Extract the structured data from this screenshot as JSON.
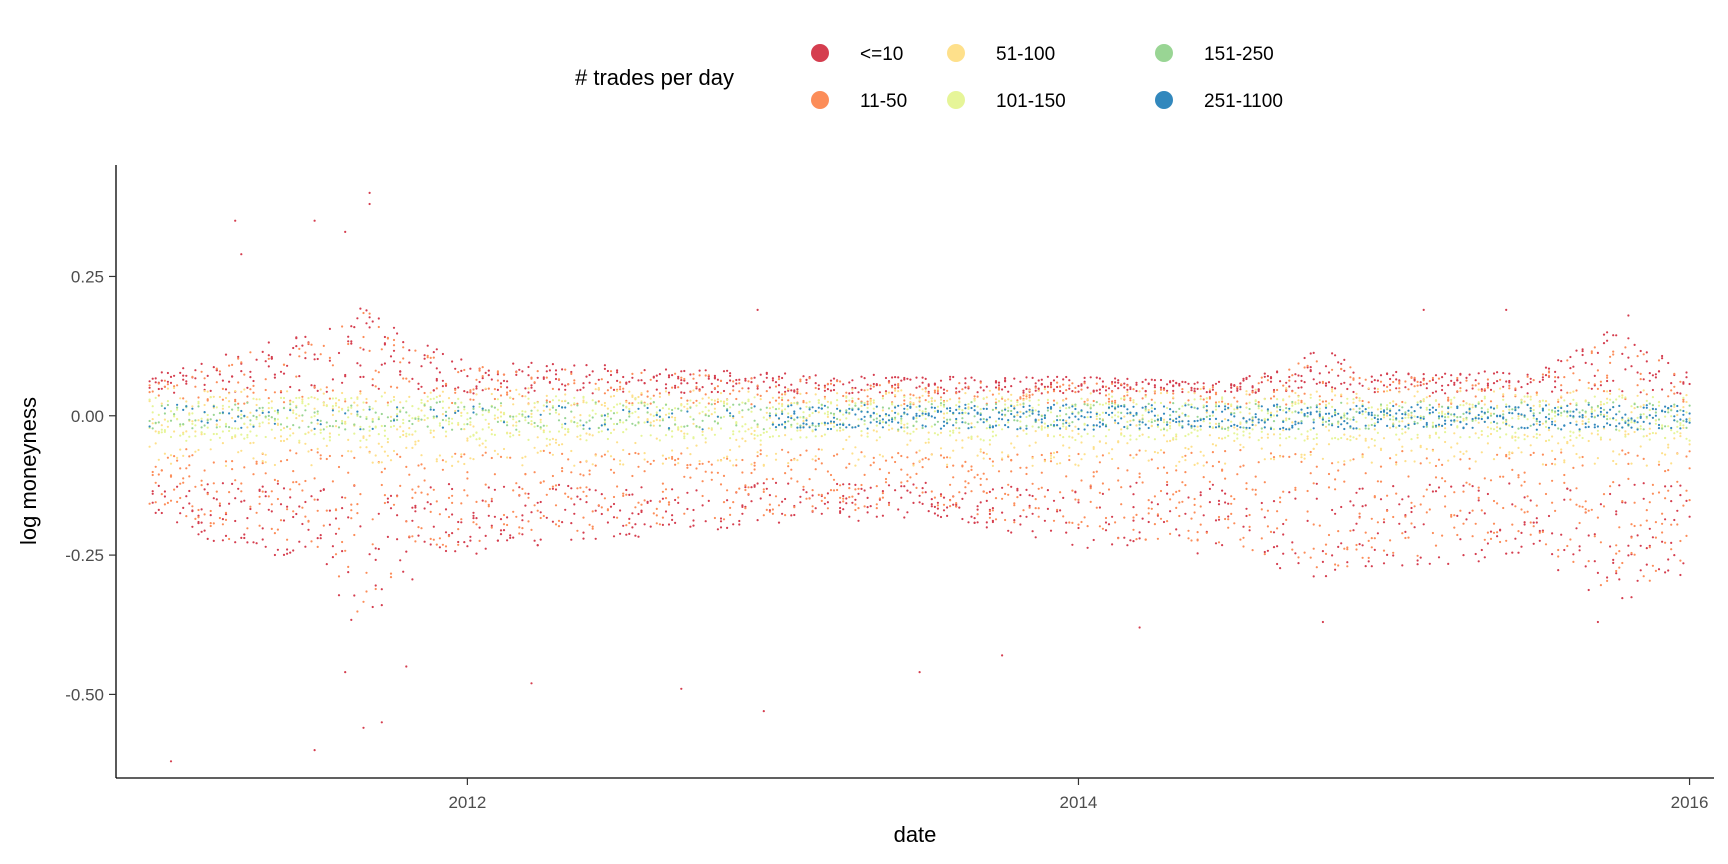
{
  "chart_data": {
    "type": "scatter",
    "title": "",
    "xlabel": "date",
    "ylabel": "log moneyness",
    "xlim": [
      2010.85,
      2016.08
    ],
    "ylim": [
      -0.65,
      0.45
    ],
    "x_ticks": [
      2012,
      2014,
      2016
    ],
    "x_tick_labels": [
      "2012",
      "2014",
      "2016"
    ],
    "y_ticks": [
      0.25,
      0.0,
      -0.25,
      -0.5
    ],
    "y_tick_labels": [
      "0.25",
      "0.00",
      "-0.25",
      "-0.50"
    ],
    "grid": false,
    "legend": {
      "title": "# trades per day",
      "position": "top",
      "entries": [
        {
          "label": "<=10",
          "color": "#D53E4F"
        },
        {
          "label": "11-50",
          "color": "#FC8D59"
        },
        {
          "label": "51-100",
          "color": "#FEE08B"
        },
        {
          "label": "101-150",
          "color": "#E6F598"
        },
        {
          "label": "151-250",
          "color": "#99D594"
        },
        {
          "label": "251-1100",
          "color": "#3288BD"
        }
      ]
    },
    "series": [
      {
        "name": "<=10",
        "color": "#D53E4F",
        "y_band_approx": "outer extremes, roughly -0.62 to 0.40"
      },
      {
        "name": "11-50",
        "color": "#FC8D59",
        "y_band_approx": "about -0.30 to 0.10"
      },
      {
        "name": "51-100",
        "color": "#FEE08B",
        "y_band_approx": "about -0.10 to 0.06"
      },
      {
        "name": "101-150",
        "color": "#E6F598",
        "y_band_approx": "about -0.05 to 0.04"
      },
      {
        "name": "151-250",
        "color": "#99D594",
        "y_band_approx": "about -0.03 to 0.03"
      },
      {
        "name": "251-1100",
        "color": "#3288BD",
        "y_band_approx": "about -0.03 to 0.02, mainly 2013 onwards"
      }
    ],
    "envelope": {
      "description": "approximate upper and lower limits of the point cloud over time (date, log moneyness)",
      "upper": [
        [
          2011.0,
          0.08
        ],
        [
          2011.25,
          0.12
        ],
        [
          2011.5,
          0.15
        ],
        [
          2011.65,
          0.22
        ],
        [
          2011.8,
          0.14
        ],
        [
          2012.0,
          0.1
        ],
        [
          2012.5,
          0.09
        ],
        [
          2013.0,
          0.08
        ],
        [
          2013.5,
          0.07
        ],
        [
          2014.0,
          0.07
        ],
        [
          2014.5,
          0.06
        ],
        [
          2014.8,
          0.12
        ],
        [
          2015.0,
          0.08
        ],
        [
          2015.5,
          0.08
        ],
        [
          2015.75,
          0.16
        ],
        [
          2016.0,
          0.08
        ]
      ],
      "lower": [
        [
          2011.0,
          -0.18
        ],
        [
          2011.25,
          -0.25
        ],
        [
          2011.5,
          -0.25
        ],
        [
          2011.65,
          -0.4
        ],
        [
          2011.8,
          -0.3
        ],
        [
          2012.0,
          -0.25
        ],
        [
          2012.5,
          -0.22
        ],
        [
          2013.0,
          -0.2
        ],
        [
          2013.5,
          -0.18
        ],
        [
          2014.0,
          -0.24
        ],
        [
          2014.5,
          -0.25
        ],
        [
          2014.8,
          -0.3
        ],
        [
          2015.0,
          -0.28
        ],
        [
          2015.5,
          -0.25
        ],
        [
          2015.75,
          -0.35
        ],
        [
          2016.0,
          -0.28
        ]
      ]
    },
    "notable_points": [
      {
        "x": 2011.03,
        "y": -0.62,
        "group": "<=10"
      },
      {
        "x": 2011.5,
        "y": -0.6,
        "group": "<=10"
      },
      {
        "x": 2011.68,
        "y": 0.4,
        "group": "<=10"
      },
      {
        "x": 2011.68,
        "y": 0.38,
        "group": "<=10"
      },
      {
        "x": 2011.24,
        "y": 0.35,
        "group": "<=10"
      },
      {
        "x": 2011.5,
        "y": 0.35,
        "group": "<=10"
      },
      {
        "x": 2011.6,
        "y": 0.33,
        "group": "<=10"
      },
      {
        "x": 2011.26,
        "y": 0.29,
        "group": "<=10"
      },
      {
        "x": 2011.66,
        "y": -0.56,
        "group": "<=10"
      },
      {
        "x": 2011.72,
        "y": -0.55,
        "group": "<=10"
      },
      {
        "x": 2011.8,
        "y": -0.45,
        "group": "<=10"
      },
      {
        "x": 2011.6,
        "y": -0.46,
        "group": "<=10"
      },
      {
        "x": 2012.21,
        "y": -0.48,
        "group": "<=10"
      },
      {
        "x": 2012.7,
        "y": -0.49,
        "group": "<=10"
      },
      {
        "x": 2012.97,
        "y": -0.53,
        "group": "<=10"
      },
      {
        "x": 2013.48,
        "y": -0.46,
        "group": "<=10"
      },
      {
        "x": 2013.75,
        "y": -0.43,
        "group": "<=10"
      },
      {
        "x": 2012.95,
        "y": 0.19,
        "group": "<=10"
      },
      {
        "x": 2015.4,
        "y": 0.19,
        "group": "<=10"
      },
      {
        "x": 2015.13,
        "y": 0.19,
        "group": "<=10"
      },
      {
        "x": 2015.8,
        "y": 0.18,
        "group": "<=10"
      },
      {
        "x": 2015.7,
        "y": -0.37,
        "group": "<=10"
      },
      {
        "x": 2014.8,
        "y": -0.37,
        "group": "<=10"
      },
      {
        "x": 2014.2,
        "y": -0.38,
        "group": "<=10"
      }
    ]
  }
}
